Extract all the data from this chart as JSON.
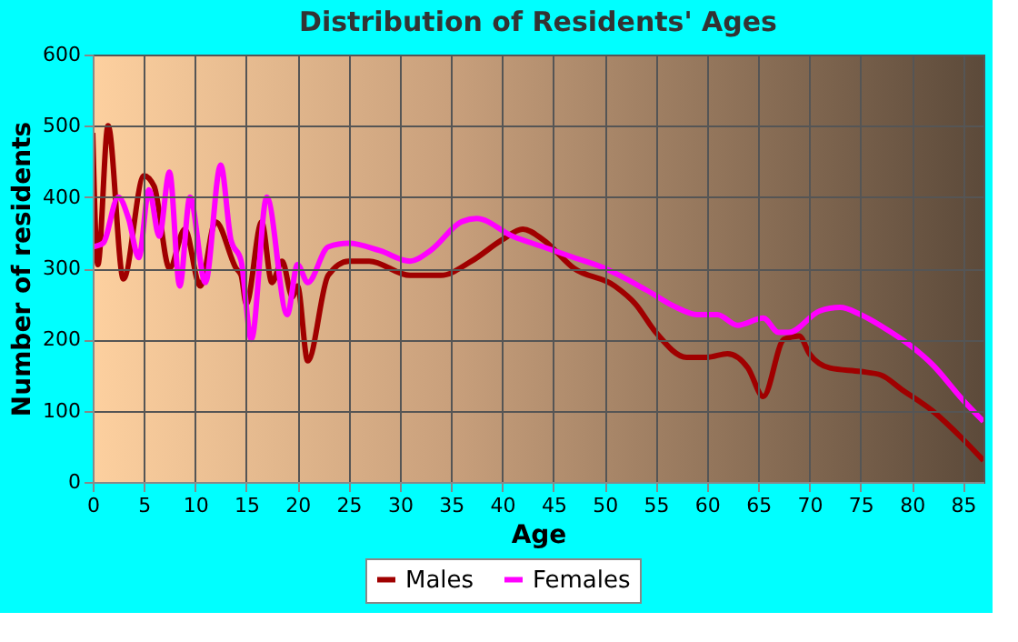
{
  "chart_data": {
    "type": "line",
    "title": "Distribution of Residents' Ages",
    "xlabel": "Age",
    "ylabel": "Number of residents",
    "xlim": [
      0,
      87
    ],
    "xticks": [
      0,
      5,
      10,
      15,
      20,
      25,
      30,
      35,
      40,
      45,
      50,
      55,
      60,
      65,
      70,
      75,
      80,
      85
    ],
    "ylim": [
      0,
      600
    ],
    "yticks": [
      0,
      100,
      200,
      300,
      400,
      500,
      600
    ],
    "grid": true,
    "legend": "bottom",
    "marker": "none",
    "line_style": "solid",
    "series": [
      {
        "name": "Males",
        "color": "#a00000",
        "x": [
          0,
          0.5,
          1.5,
          3,
          5,
          6,
          7.5,
          9,
          10.5,
          12,
          14,
          14.5,
          15,
          16.5,
          17.5,
          18.5,
          19.5,
          20,
          21,
          23,
          25,
          27,
          31,
          34,
          37,
          40,
          42,
          44,
          47,
          51,
          53,
          55,
          58,
          60,
          62,
          64,
          65.5,
          67.5,
          69,
          70,
          72,
          75,
          77,
          79,
          82,
          85,
          87
        ],
        "values": [
          490,
          305,
          500,
          285,
          430,
          415,
          300,
          355,
          275,
          365,
          300,
          290,
          250,
          365,
          280,
          310,
          260,
          275,
          170,
          290,
          310,
          310,
          290,
          290,
          310,
          340,
          355,
          340,
          300,
          275,
          250,
          210,
          175,
          175,
          180,
          160,
          120,
          200,
          205,
          180,
          160,
          155,
          150,
          130,
          100,
          60,
          30
        ]
      },
      {
        "name": "Females",
        "color": "#ff00ff",
        "x": [
          0,
          1,
          2.5,
          3.5,
          4.5,
          5.5,
          6.5,
          7.5,
          8.5,
          9.5,
          11,
          12.5,
          13.5,
          14.5,
          15.5,
          17,
          19,
          20,
          21,
          23,
          25,
          28,
          31,
          33,
          36,
          37.5,
          41,
          44,
          47,
          50,
          54,
          57,
          59,
          61,
          63,
          65.5,
          67,
          68,
          71,
          73,
          75,
          78,
          80,
          82,
          85,
          87
        ],
        "values": [
          330,
          335,
          400,
          370,
          315,
          410,
          345,
          435,
          275,
          400,
          280,
          445,
          340,
          310,
          200,
          400,
          235,
          305,
          280,
          330,
          335,
          325,
          310,
          325,
          365,
          370,
          345,
          330,
          315,
          300,
          270,
          245,
          235,
          235,
          220,
          230,
          210,
          210,
          240,
          245,
          235,
          210,
          190,
          165,
          115,
          85
        ]
      }
    ]
  }
}
